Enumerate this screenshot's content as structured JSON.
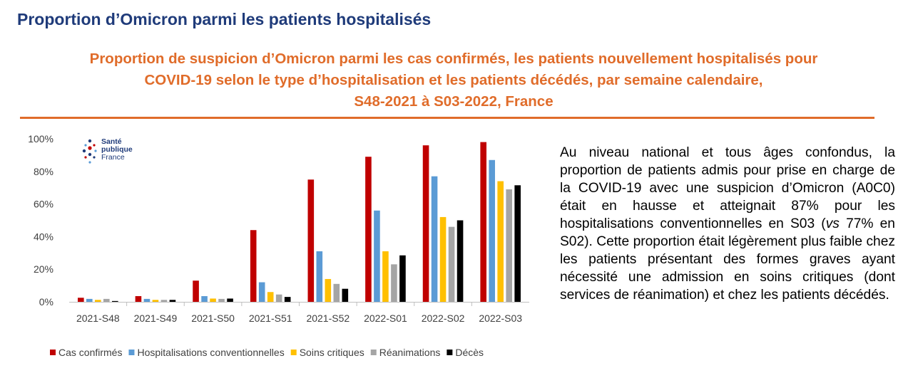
{
  "page_title": "Proportion d’Omicron parmi les patients hospitalisés",
  "subtitle_lines": [
    "Proportion de suspicion d’Omicron parmi les cas confirmés, les patients nouvellement hospitalisés pour",
    "COVID-19 selon le type d’hospitalisation et les patients décédés, par semaine calendaire,",
    "S48-2021 à S03-2022, France"
  ],
  "logo": {
    "line1": "Santé",
    "line2": "publique",
    "line3": "France"
  },
  "description": {
    "p1": "Au niveau national et tous âges confondus, la proportion de patients admis pour prise en charge de la COVID-19 avec une suspicion d’Omicron (A0C0) était en hausse et atteignait 87% pour les hospitalisations conventionnelles en S03 (",
    "vs": "vs",
    "p2": " 77% en S02). Cette proportion était légèrement plus faible chez les patients présentant des formes graves ayant nécessité une admission en soins critiques (dont services de réanimation) et chez les patients décédés."
  },
  "chart_data": {
    "type": "bar",
    "title": "",
    "xlabel": "",
    "ylabel": "",
    "categories": [
      "2021-S48",
      "2021-S49",
      "2021-S50",
      "2021-S51",
      "2021-S52",
      "2022-S01",
      "2022-S02",
      "2022-S03"
    ],
    "y_ticks": [
      "0%",
      "20%",
      "40%",
      "60%",
      "80%",
      "100%"
    ],
    "ylim": [
      0,
      100
    ],
    "legend_position": "bottom",
    "series": [
      {
        "name": "Cas confirmés",
        "color": "#c00000",
        "values": [
          2.5,
          3.5,
          13,
          44,
          75,
          89,
          96,
          98
        ]
      },
      {
        "name": "Hospitalisations conventionnelles",
        "color": "#5b9bd5",
        "values": [
          1.8,
          1.8,
          3.5,
          12,
          31,
          56,
          77,
          87
        ]
      },
      {
        "name": "Soins critiques",
        "color": "#ffc000",
        "values": [
          1.2,
          1.2,
          2,
          6,
          14,
          31,
          52,
          74
        ]
      },
      {
        "name": "Réanimations",
        "color": "#a5a5a5",
        "values": [
          1.8,
          1.2,
          1.8,
          4.5,
          11,
          23,
          46,
          69
        ]
      },
      {
        "name": "Décès",
        "color": "#000000",
        "values": [
          0.5,
          1.2,
          2,
          3,
          8,
          28.5,
          50,
          71.5
        ]
      }
    ]
  }
}
